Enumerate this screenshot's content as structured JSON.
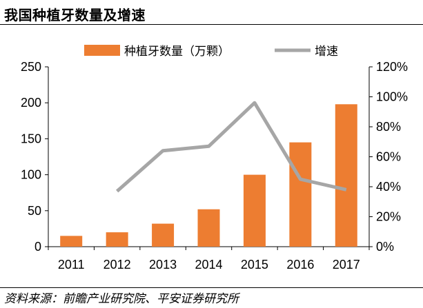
{
  "title": "我国种植牙数量及增速",
  "source": "资料来源：前瞻产业研究院、平安证券研究所",
  "colors": {
    "bar": "#ED7D31",
    "line": "#A6A6A6",
    "axis": "#000000"
  },
  "chart_data": {
    "type": "bar+line",
    "categories": [
      "2011",
      "2012",
      "2013",
      "2014",
      "2015",
      "2016",
      "2017"
    ],
    "series": [
      {
        "name": "种植牙数量（万颗）",
        "type": "bar",
        "axis": "left",
        "values": [
          15,
          20,
          32,
          52,
          100,
          145,
          198
        ]
      },
      {
        "name": "增速",
        "type": "line",
        "axis": "right",
        "values": [
          null,
          37,
          64,
          67,
          96,
          45,
          38
        ]
      }
    ],
    "y_left": {
      "min": 0,
      "max": 250,
      "ticks": [
        "0",
        "50",
        "100",
        "150",
        "200",
        "250"
      ]
    },
    "y_right": {
      "min": 0,
      "max": 120,
      "ticks": [
        "0%",
        "20%",
        "40%",
        "60%",
        "80%",
        "100%",
        "120%"
      ]
    },
    "legend_position": "top-center",
    "grid": false
  }
}
